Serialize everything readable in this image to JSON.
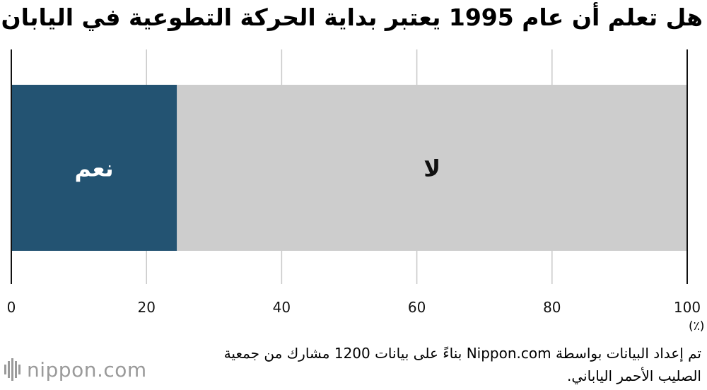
{
  "title": "هل تعلم أن عام 1995 يعتبر بداية الحركة التطوعية في اليابان؟",
  "chart_data": {
    "type": "bar",
    "orientation": "horizontal-stacked",
    "segments": [
      {
        "label": "نعم",
        "value": 24.5,
        "color": "#235372",
        "label_color": "#ffffff"
      },
      {
        "label": "لا",
        "value": 75.5,
        "color": "#cdcdcd",
        "label_color": "#111111"
      }
    ],
    "xlim": [
      0,
      100
    ],
    "xticks": [
      "0",
      "20",
      "40",
      "60",
      "80",
      "100"
    ],
    "unit": "(٪)",
    "grid": true
  },
  "note": "تم إعداد البيانات بواسطة Nippon.com بناءً على بيانات 1200 مشارك من جمعية الصليب الأحمر الياباني.",
  "logo": {
    "text": "nippon.com",
    "color": "#999999"
  }
}
